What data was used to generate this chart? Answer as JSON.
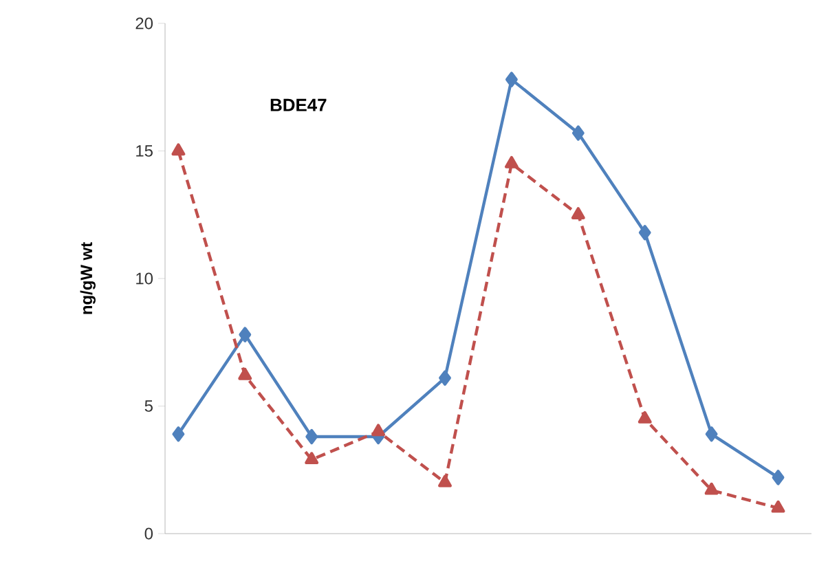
{
  "chart_data": {
    "type": "line",
    "title": "BDE47",
    "ylabel": "ng/gW wt",
    "categories": [
      null,
      null,
      null,
      null,
      null,
      null,
      null,
      null,
      null,
      null
    ],
    "series": [
      {
        "color": "#4f81bd",
        "marker": "diamond",
        "line_style": "solid",
        "values": [
          3.9,
          7.8,
          3.8,
          3.8,
          6.1,
          17.8,
          15.7,
          11.8,
          3.9,
          2.2
        ]
      },
      {
        "color": "#c0504d",
        "marker": "triangle",
        "line_style": "dashed",
        "values": [
          15.0,
          6.2,
          2.9,
          4.0,
          2.0,
          14.5,
          12.5,
          4.5,
          1.7,
          1.0
        ]
      }
    ],
    "ylim": [
      0,
      20
    ],
    "yticks": [
      0,
      5,
      10,
      15,
      20
    ],
    "grid": false
  }
}
